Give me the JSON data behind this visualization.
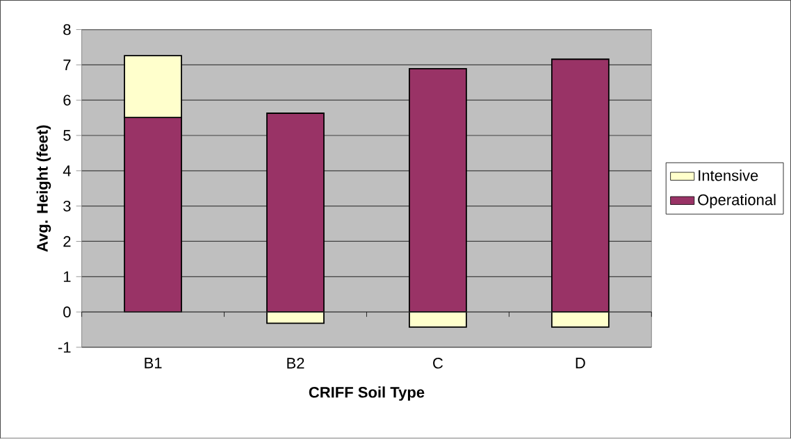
{
  "chart_data": {
    "type": "bar",
    "xlabel": "CRIFF Soil Type",
    "ylabel": "Avg. Height (feet)",
    "categories": [
      "B1",
      "B2",
      "C",
      "D"
    ],
    "series": [
      {
        "name": "Operational",
        "color": "#993366",
        "values": [
          5.51,
          5.63,
          6.89,
          7.16
        ]
      },
      {
        "name": "Intensive",
        "color": "#ffffcc",
        "values": [
          1.75,
          -0.32,
          -0.43,
          -0.43
        ]
      }
    ],
    "stacked": true,
    "ylim": [
      -1,
      8
    ],
    "yticks": [
      -1,
      0,
      1,
      2,
      3,
      4,
      5,
      6,
      7,
      8
    ],
    "grid": "y",
    "legend": "right"
  }
}
